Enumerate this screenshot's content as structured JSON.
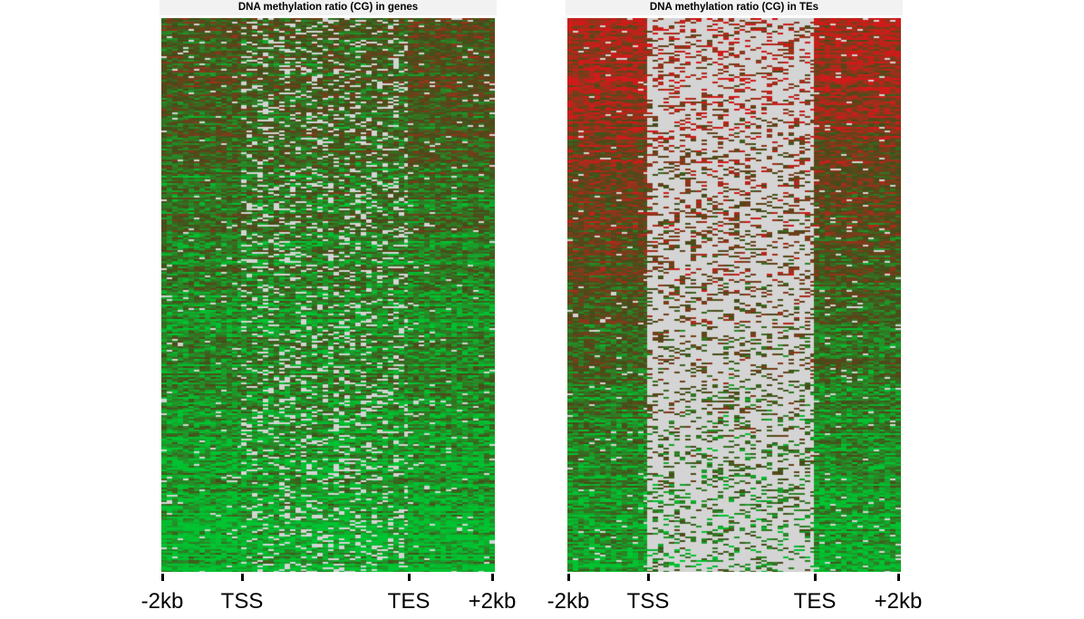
{
  "chart_data": [
    {
      "type": "heatmap",
      "title": "DNA methylation ratio (CG) in genes",
      "x_tick_labels": [
        "-2kb",
        "TSS",
        "TES",
        "+2kb"
      ],
      "regions": [
        "upstream",
        "body",
        "downstream"
      ],
      "color_scale": {
        "low": "#00ee3c",
        "high": "#ff2020",
        "missing": "#d4d4d4"
      },
      "rows_sorted_by": "methylation level",
      "mean_methylation_top_to_bottom": {
        "upstream": [
          0.5,
          0.25,
          0.05
        ],
        "body": [
          0.45,
          0.25,
          0.08
        ],
        "downstream": [
          0.55,
          0.25,
          0.05
        ]
      }
    },
    {
      "type": "heatmap",
      "title": "DNA methylation ratio (CG) in TEs",
      "x_tick_labels": [
        "-2kb",
        "TSS",
        "TES",
        "+2kb"
      ],
      "regions": [
        "upstream",
        "body",
        "downstream"
      ],
      "color_scale": {
        "low": "#00ee3c",
        "high": "#ff2020",
        "missing": "#d4d4d4"
      },
      "rows_sorted_by": "methylation level",
      "mean_methylation_top_to_bottom": {
        "upstream": [
          0.95,
          0.5,
          0.05
        ],
        "body": [
          0.9,
          0.6,
          0.2
        ],
        "downstream": [
          0.95,
          0.4,
          0.05
        ]
      }
    }
  ]
}
